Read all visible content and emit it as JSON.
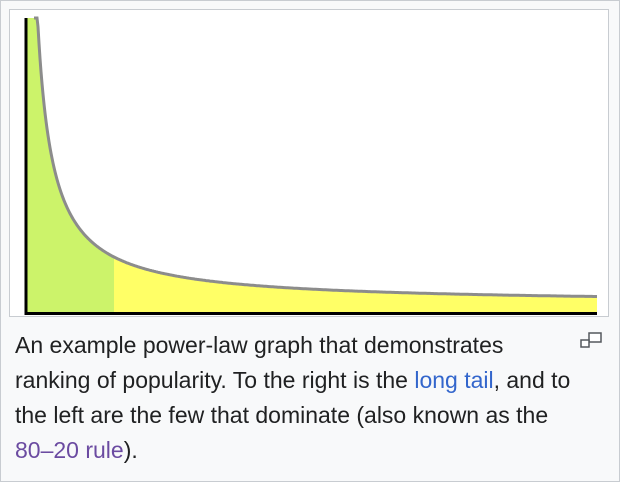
{
  "caption": {
    "part1": "An example power-law graph that demonstrates ranking of popularity. To the right is the ",
    "link_long_tail": "long tail",
    "part2": ", and to the left are the few that dominate (also known as the ",
    "link_80_20": "80–20 rule",
    "part3": ")."
  },
  "icons": {
    "magnify": "magnify-icon"
  },
  "colors": {
    "head_fill": "#ccf36a",
    "tail_fill": "#ffff66",
    "curve": "#8c8c8c",
    "axis": "#000000",
    "link": "#3366cc",
    "link_visited": "#6b4ba1"
  },
  "chart_data": {
    "type": "area",
    "title": "",
    "xlabel": "",
    "ylabel": "",
    "grid": false,
    "legend": "none",
    "curve": "power-law",
    "regions": [
      "head",
      "long tail"
    ]
  }
}
